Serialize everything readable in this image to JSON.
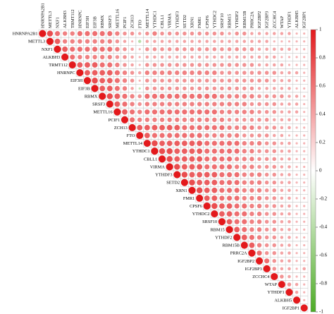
{
  "chart_data": {
    "type": "corrplot",
    "labels": [
      "HNRNPA2B1",
      "METTL3",
      "NXF1",
      "ALKBH3",
      "TRMT112",
      "HNRNPC",
      "EIF3H",
      "EIF3B",
      "RBMX",
      "SRSF3",
      "METTL16",
      "PCIF1",
      "ZCH13",
      "FTO",
      "METTL14",
      "YTHDC1",
      "CBLL1",
      "VIRMA",
      "YTHDF3",
      "SETD2",
      "XRN1",
      "FMR1",
      "CPSF6",
      "YTHDC2",
      "SRSF10",
      "RBM15",
      "YTHDF2",
      "RBM15B",
      "PRRC2A",
      "IGF2BP2",
      "IGF2BP3",
      "ZCCHC4",
      "WTAP",
      "YTHDF1",
      "ALKBH5",
      "IGF2BP1"
    ],
    "matrix": [
      [
        1,
        0.7,
        0.5,
        0.4,
        0.4,
        0.5,
        0.5,
        0.5,
        0.5,
        0.5,
        0.4,
        0.3,
        0.3,
        0.2,
        0.3,
        0.4,
        0.3,
        0.3,
        0.3,
        0.3,
        0.3,
        0.3,
        0.3,
        0.3,
        0.3,
        0.2,
        0.3,
        0.3,
        0.2,
        0.2,
        0.2,
        0.2,
        0.2,
        0.2,
        0.1,
        0.1
      ],
      [
        1,
        0.6,
        0.4,
        0.4,
        0.4,
        0.4,
        0.4,
        0.4,
        0.4,
        0.3,
        0.2,
        0.1,
        -0.2,
        0.2,
        0.2,
        0.2,
        0.2,
        0.2,
        0.2,
        0.2,
        0.2,
        0.2,
        0.2,
        0.2,
        0.2,
        0.2,
        0.2,
        0.2,
        0.2,
        0.2,
        0.1,
        0.1,
        0.1,
        0.1,
        0.1
      ],
      [
        1,
        0.6,
        0.5,
        0.5,
        0.5,
        0.5,
        0.5,
        0.5,
        0.4,
        0.3,
        0.2,
        0.1,
        0.3,
        0.3,
        0.3,
        0.3,
        0.3,
        0.3,
        0.3,
        0.3,
        0.3,
        0.3,
        0.3,
        0.3,
        0.3,
        0.3,
        0.3,
        0.2,
        0.2,
        0.2,
        0.2,
        0.2,
        0.1,
        0.1
      ],
      [
        1,
        0.5,
        0.4,
        0.4,
        0.4,
        0.4,
        0.4,
        0.3,
        0.3,
        0.2,
        0.1,
        0.2,
        0.2,
        0.2,
        0.2,
        0.2,
        0.2,
        0.2,
        0.2,
        0.2,
        0.2,
        0.2,
        0.2,
        0.2,
        0.2,
        0.2,
        0.2,
        0.2,
        0.2,
        0.1,
        0.1,
        0.1,
        0.1
      ],
      [
        1,
        0.6,
        0.6,
        0.6,
        0.5,
        0.5,
        0.4,
        0.3,
        0.2,
        0.1,
        0.3,
        0.3,
        0.3,
        0.3,
        0.3,
        0.3,
        0.3,
        0.3,
        0.3,
        0.3,
        0.3,
        0.3,
        0.3,
        0.3,
        0.3,
        0.2,
        0.2,
        0.2,
        0.2,
        0.1,
        0.1,
        0.1
      ],
      [
        1,
        0.6,
        0.6,
        0.6,
        0.6,
        0.5,
        0.4,
        0.3,
        0.2,
        0.4,
        0.4,
        0.4,
        0.4,
        0.4,
        0.4,
        0.4,
        0.4,
        0.4,
        0.4,
        0.3,
        0.3,
        0.3,
        0.3,
        0.3,
        0.3,
        0.3,
        0.3,
        0.2,
        0.2,
        0.2,
        0.1
      ],
      [
        1,
        0.7,
        0.6,
        0.6,
        0.5,
        0.4,
        0.3,
        0.1,
        0.3,
        0.3,
        0.3,
        0.3,
        0.3,
        0.3,
        0.3,
        0.3,
        0.3,
        0.3,
        0.3,
        0.3,
        0.3,
        0.3,
        0.3,
        0.3,
        0.3,
        0.2,
        0.2,
        0.2,
        0.1,
        0.1
      ],
      [
        1,
        0.6,
        0.6,
        0.5,
        0.4,
        0.2,
        -0.1,
        0.3,
        0.3,
        0.3,
        0.3,
        0.3,
        0.3,
        0.3,
        0.3,
        0.3,
        0.3,
        0.3,
        0.3,
        0.3,
        0.3,
        0.3,
        0.2,
        0.2,
        0.2,
        0.2,
        0.2,
        0.1,
        0.1
      ],
      [
        1,
        0.7,
        0.6,
        0.5,
        0.4,
        0.3,
        0.5,
        0.5,
        0.5,
        0.5,
        0.5,
        0.5,
        0.5,
        0.5,
        0.5,
        0.5,
        0.4,
        0.4,
        0.4,
        0.4,
        0.4,
        0.3,
        0.3,
        0.3,
        0.3,
        0.2,
        0.2,
        0.1
      ],
      [
        1,
        0.6,
        0.5,
        0.4,
        0.3,
        0.4,
        0.4,
        0.4,
        0.4,
        0.4,
        0.4,
        0.4,
        0.4,
        0.4,
        0.4,
        0.4,
        0.4,
        0.4,
        0.4,
        0.3,
        0.3,
        0.3,
        0.3,
        0.2,
        0.2,
        0.2,
        0.1
      ],
      [
        1,
        0.6,
        0.5,
        0.4,
        0.5,
        0.5,
        0.5,
        0.5,
        0.5,
        0.5,
        0.5,
        0.5,
        0.5,
        0.5,
        0.4,
        0.4,
        0.4,
        0.4,
        0.4,
        0.3,
        0.3,
        0.3,
        0.2,
        0.2,
        0.2,
        0.1
      ],
      [
        1,
        0.5,
        0.4,
        0.4,
        0.4,
        0.4,
        0.4,
        0.4,
        0.4,
        0.4,
        0.4,
        0.4,
        0.4,
        0.4,
        0.3,
        0.3,
        0.3,
        0.3,
        0.3,
        0.3,
        0.2,
        0.2,
        0.2,
        0.1,
        0.1
      ],
      [
        1,
        0.6,
        0.6,
        0.6,
        0.6,
        0.6,
        0.6,
        0.5,
        0.5,
        0.5,
        0.5,
        0.5,
        0.5,
        0.4,
        0.4,
        0.4,
        0.4,
        0.3,
        0.3,
        0.3,
        0.2,
        0.2,
        0.1,
        0.1
      ],
      [
        1,
        0.6,
        0.5,
        0.5,
        0.5,
        0.5,
        0.5,
        0.5,
        0.5,
        0.4,
        0.4,
        0.4,
        0.4,
        0.4,
        0.3,
        0.3,
        0.3,
        0.3,
        0.2,
        0.2,
        0.1,
        0.1,
        0.1
      ],
      [
        1,
        0.7,
        0.6,
        0.6,
        0.6,
        0.6,
        0.6,
        0.6,
        0.5,
        0.5,
        0.5,
        0.5,
        0.5,
        0.4,
        0.4,
        0.4,
        0.3,
        0.3,
        0.2,
        0.2,
        0.1,
        0.1
      ],
      [
        1,
        0.7,
        0.7,
        0.6,
        0.6,
        0.6,
        0.6,
        0.5,
        0.5,
        0.5,
        0.5,
        0.5,
        0.4,
        0.4,
        0.3,
        0.3,
        0.3,
        0.2,
        0.2,
        0.1,
        0.1
      ],
      [
        1,
        0.7,
        0.6,
        0.6,
        0.6,
        0.6,
        0.5,
        0.5,
        0.5,
        0.5,
        0.4,
        0.4,
        0.4,
        0.3,
        0.3,
        0.3,
        0.2,
        0.2,
        0.1,
        0.1
      ],
      [
        1,
        0.7,
        0.6,
        0.6,
        0.6,
        0.5,
        0.5,
        0.5,
        0.5,
        0.4,
        0.4,
        0.4,
        0.3,
        0.3,
        0.3,
        0.2,
        0.2,
        0.1,
        0.1
      ],
      [
        1,
        0.7,
        0.6,
        0.6,
        0.6,
        0.6,
        0.5,
        0.5,
        0.5,
        0.4,
        0.4,
        0.4,
        0.3,
        0.3,
        0.2,
        0.2,
        0.1,
        0.1
      ],
      [
        1,
        0.7,
        0.6,
        0.6,
        0.6,
        0.5,
        0.5,
        0.5,
        0.4,
        0.4,
        0.4,
        0.3,
        0.3,
        0.2,
        0.2,
        0.1,
        0.1
      ],
      [
        1,
        0.7,
        0.6,
        0.6,
        0.5,
        0.5,
        0.5,
        0.4,
        0.4,
        0.4,
        0.3,
        0.3,
        0.2,
        0.2,
        0.1,
        0.1
      ],
      [
        1,
        0.6,
        0.6,
        0.5,
        0.5,
        0.5,
        0.4,
        0.4,
        0.4,
        0.3,
        0.3,
        0.2,
        0.2,
        0.1,
        0.1
      ],
      [
        1,
        0.7,
        0.6,
        0.6,
        0.5,
        0.5,
        0.4,
        0.4,
        0.3,
        0.3,
        0.2,
        0.2,
        0.1,
        0.1
      ],
      [
        1,
        0.6,
        0.6,
        0.5,
        0.5,
        0.4,
        0.4,
        0.3,
        0.3,
        0.2,
        0.2,
        0.1,
        0.1
      ],
      [
        1,
        0.6,
        0.5,
        0.5,
        0.4,
        0.4,
        0.3,
        0.3,
        0.2,
        0.2,
        0.1,
        0.1
      ],
      [
        1,
        0.6,
        0.5,
        0.4,
        0.4,
        0.3,
        0.3,
        0.2,
        0.2,
        0.1,
        0.1
      ],
      [
        1,
        0.6,
        0.5,
        0.4,
        0.3,
        0.3,
        0.2,
        0.2,
        0.1,
        0.1
      ],
      [
        1,
        0.6,
        0.4,
        0.3,
        0.3,
        0.2,
        0.2,
        0.1,
        0.1
      ],
      [
        1,
        0.5,
        0.3,
        0.3,
        0.2,
        0.2,
        0.1,
        0.1
      ],
      [
        1,
        0.5,
        0.3,
        0.2,
        0.2,
        0.1,
        0.1
      ],
      [
        1,
        0.3,
        0.2,
        0.2,
        0.1,
        0.2
      ],
      [
        1,
        0.3,
        0.2,
        0.1,
        0.1
      ],
      [
        1,
        0.3,
        0.2,
        0.1
      ],
      [
        1,
        0.2,
        0.1
      ],
      [
        1,
        0.1
      ],
      [
        1
      ]
    ],
    "positive_color": "#e3191c",
    "negative_color": "#4dac26",
    "colorbar_lim": [
      -1,
      1
    ],
    "colorbar_ticks": [
      1,
      0.8,
      0.6,
      0.4,
      0.2,
      0,
      -0.2,
      -0.4,
      -0.6,
      -0.8,
      -1
    ]
  }
}
